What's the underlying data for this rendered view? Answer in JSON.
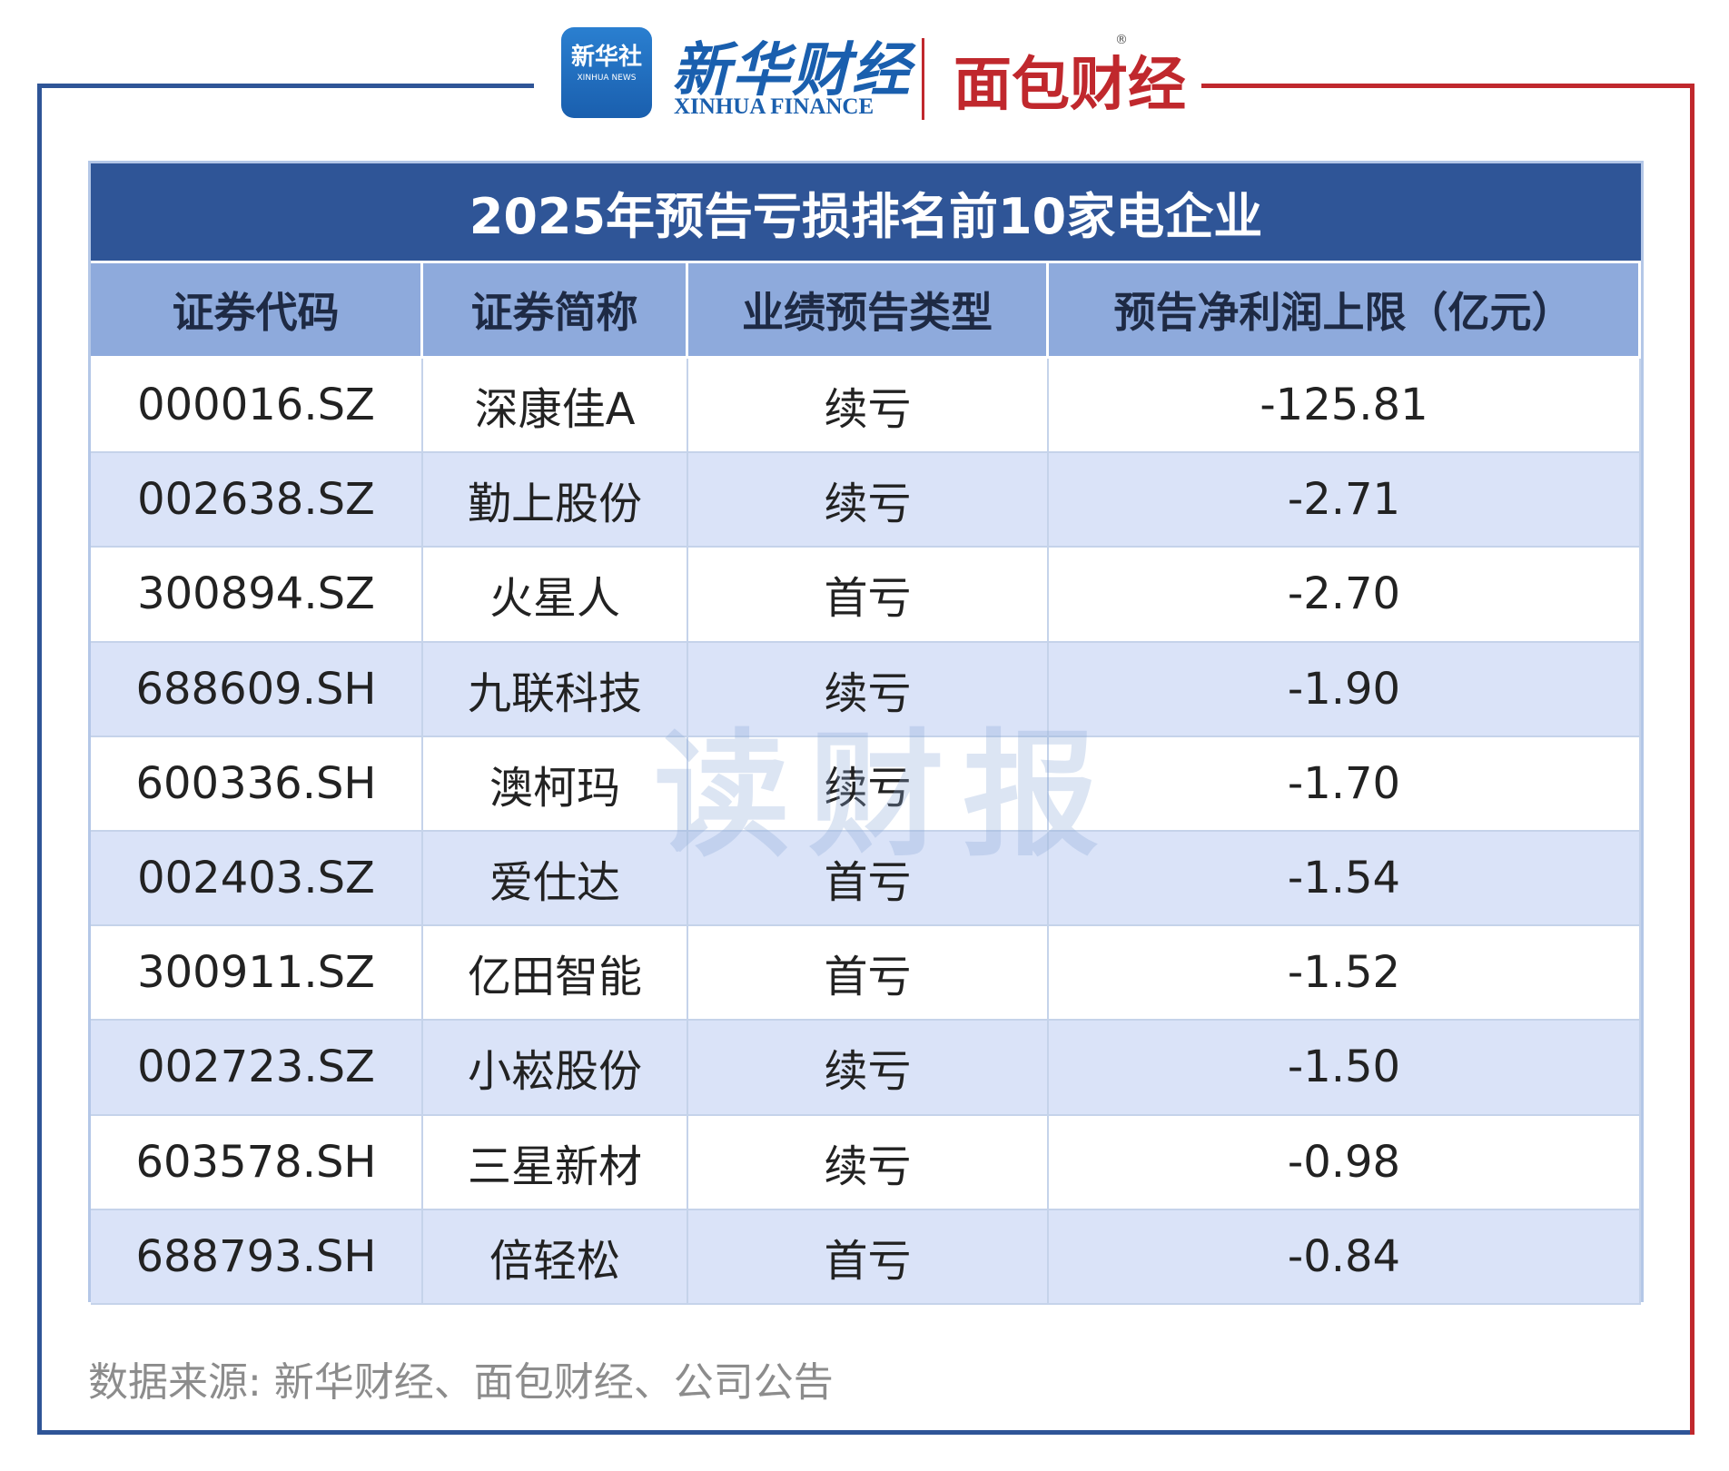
{
  "header": {
    "logos": {
      "xinhua_news": "新华社",
      "xinhua_news_en": "XINHUA NEWS",
      "xinhua_finance": "新华财经",
      "xinhua_finance_en": "XINHUA FINANCE",
      "mianbao": "面包财经",
      "registered": "®"
    }
  },
  "table": {
    "title": "2025年预告亏损排名前10家电企业",
    "columns": [
      "证券代码",
      "证券简称",
      "业绩预告类型",
      "预告净利润上限（亿元）"
    ],
    "rows": [
      [
        "000016.SZ",
        "深康佳A",
        "续亏",
        "-125.81"
      ],
      [
        "002638.SZ",
        "勤上股份",
        "续亏",
        "-2.71"
      ],
      [
        "300894.SZ",
        "火星人",
        "首亏",
        "-2.70"
      ],
      [
        "688609.SH",
        "九联科技",
        "续亏",
        "-1.90"
      ],
      [
        "600336.SH",
        "澳柯玛",
        "续亏",
        "-1.70"
      ],
      [
        "002403.SZ",
        "爱仕达",
        "首亏",
        "-1.54"
      ],
      [
        "300911.SZ",
        "亿田智能",
        "首亏",
        "-1.52"
      ],
      [
        "002723.SZ",
        "小崧股份",
        "续亏",
        "-1.50"
      ],
      [
        "603578.SH",
        "三星新材",
        "续亏",
        "-0.98"
      ],
      [
        "688793.SH",
        "倍轻松",
        "首亏",
        "-0.84"
      ]
    ]
  },
  "watermark": "读财报",
  "footer": {
    "source": "数据来源: 新华财经、面包财经、公司公告"
  }
}
